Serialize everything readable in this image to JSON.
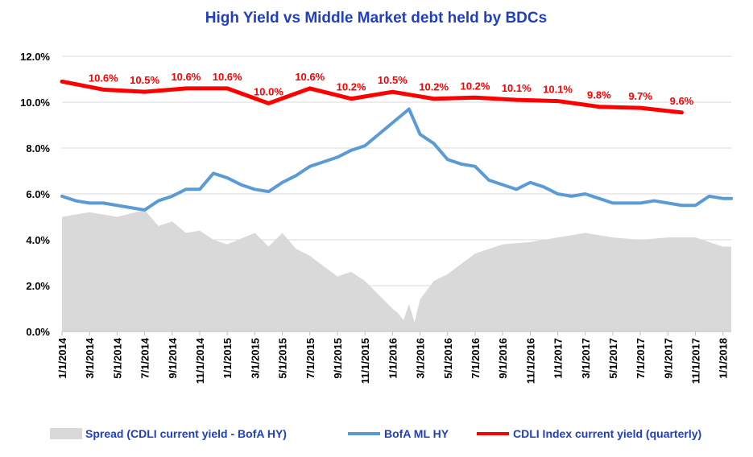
{
  "chart_data": {
    "type": "line",
    "title": "High Yield  vs  Middle Market debt held by BDCs",
    "ylim": [
      0,
      12
    ],
    "y_ticks": [
      "0.0%",
      "2.0%",
      "4.0%",
      "6.0%",
      "8.0%",
      "10.0%",
      "12.0%"
    ],
    "x_ticks": [
      "1/1/2014",
      "3/1/2014",
      "5/1/2014",
      "7/1/2014",
      "9/1/2014",
      "11/1/2014",
      "1/1/2015",
      "3/1/2015",
      "5/1/2015",
      "7/1/2015",
      "9/1/2015",
      "11/1/2015",
      "1/1/2016",
      "3/1/2016",
      "5/1/2016",
      "7/1/2016",
      "9/1/2016",
      "11/1/2016",
      "1/1/2017",
      "3/1/2017",
      "5/1/2017",
      "7/1/2017",
      "9/1/2017",
      "11/1/2017",
      "1/1/2018"
    ],
    "grid": true,
    "legend_position": "bottom",
    "series": [
      {
        "name": "Spread (CDLI current yield - BofA HY)",
        "kind": "area",
        "color": "#d9d9d9",
        "x": [
          0,
          1,
          2,
          3,
          3.5,
          4,
          4.5,
          5,
          5.5,
          6,
          7,
          7.5,
          8,
          8.5,
          9,
          10,
          10.5,
          11,
          11.5,
          12,
          12.2,
          12.4,
          12.6,
          12.8,
          13,
          13.5,
          14,
          15,
          16,
          17,
          18,
          19,
          20,
          21,
          22,
          23,
          24,
          24.3
        ],
        "values": [
          5.0,
          5.2,
          5.0,
          5.3,
          4.6,
          4.8,
          4.3,
          4.4,
          4.0,
          3.8,
          4.3,
          3.7,
          4.3,
          3.6,
          3.3,
          2.4,
          2.6,
          2.2,
          1.6,
          1.0,
          0.8,
          0.5,
          1.2,
          0.4,
          1.4,
          2.2,
          2.5,
          3.4,
          3.8,
          3.9,
          4.1,
          4.3,
          4.1,
          4.0,
          4.1,
          4.1,
          3.7,
          3.7
        ]
      },
      {
        "name": "BofA ML HY",
        "kind": "line",
        "color": "#5b9bd5",
        "x": [
          0,
          0.5,
          1,
          1.5,
          2,
          2.5,
          3,
          3.5,
          4,
          4.5,
          5,
          5.5,
          6,
          6.5,
          7,
          7.5,
          8,
          8.5,
          9,
          9.5,
          10,
          10.5,
          11,
          11.5,
          12,
          12.3,
          12.6,
          13,
          13.5,
          14,
          14.5,
          15,
          15.5,
          16,
          16.5,
          17,
          17.5,
          18,
          18.5,
          19,
          19.5,
          20,
          20.5,
          21,
          21.5,
          22,
          22.5,
          23,
          23.5,
          24,
          24.3
        ],
        "values": [
          5.9,
          5.7,
          5.6,
          5.6,
          5.5,
          5.4,
          5.3,
          5.7,
          5.9,
          6.2,
          6.2,
          6.9,
          6.7,
          6.4,
          6.2,
          6.1,
          6.5,
          6.8,
          7.2,
          7.4,
          7.6,
          7.9,
          8.1,
          8.6,
          9.1,
          9.4,
          9.7,
          8.6,
          8.2,
          7.5,
          7.3,
          7.2,
          6.6,
          6.4,
          6.2,
          6.5,
          6.3,
          6.0,
          5.9,
          6.0,
          5.8,
          5.6,
          5.6,
          5.6,
          5.7,
          5.6,
          5.5,
          5.5,
          5.9,
          5.8,
          5.8
        ]
      },
      {
        "name": "CDLI Index current yield (quarterly)",
        "kind": "line",
        "color": "#ff0000",
        "x": [
          0,
          1.5,
          3,
          4.5,
          6,
          7.5,
          9,
          10.5,
          12,
          13.5,
          15,
          16.5,
          18,
          19.5,
          21,
          22.5
        ],
        "values": [
          10.9,
          10.55,
          10.45,
          10.6,
          10.6,
          9.95,
          10.6,
          10.15,
          10.45,
          10.15,
          10.2,
          10.1,
          10.05,
          9.8,
          9.75,
          9.55
        ],
        "labels": [
          "10.6%",
          "10.5%",
          "10.6%",
          "10.6%",
          "10.0%",
          "10.6%",
          "10.2%",
          "10.5%",
          "10.2%",
          "10.2%",
          "10.1%",
          "10.1%",
          "9.8%",
          "9.7%",
          "9.6%"
        ]
      }
    ]
  }
}
